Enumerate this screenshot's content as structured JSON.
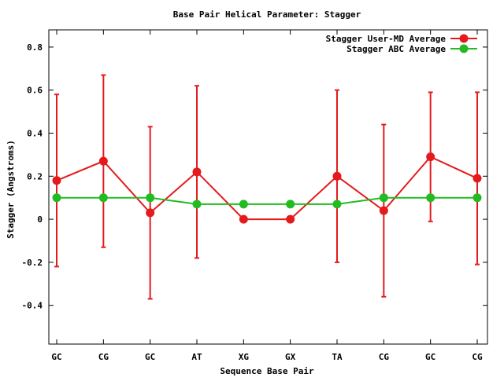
{
  "chart_data": {
    "type": "line",
    "title": "Base Pair Helical Parameter: Stagger",
    "xlabel": "Sequence Base Pair",
    "ylabel": "Stagger (Angstroms)",
    "categories": [
      "GC",
      "CG",
      "GC",
      "AT",
      "XG",
      "GX",
      "TA",
      "CG",
      "GC",
      "CG"
    ],
    "ylim": [
      -0.58,
      0.88
    ],
    "yticks": [
      -0.4,
      -0.2,
      0,
      0.2,
      0.4,
      0.6,
      0.8
    ],
    "ytick_labels": [
      "-0.4",
      "-0.2",
      "0",
      "0.2",
      "0.4",
      "0.6",
      "0.8"
    ],
    "grid": false,
    "legend_position": "top-right",
    "series": [
      {
        "name": "Stagger User-MD Average",
        "color": "#e41a1c",
        "values": [
          0.18,
          0.27,
          0.03,
          0.22,
          0.0,
          0.0,
          0.2,
          0.04,
          0.29,
          0.19
        ],
        "error_low": [
          -0.22,
          -0.13,
          -0.37,
          -0.18,
          0.0,
          0.0,
          -0.2,
          -0.36,
          -0.01,
          -0.21
        ],
        "error_high": [
          0.58,
          0.67,
          0.43,
          0.62,
          0.0,
          0.0,
          0.6,
          0.44,
          0.59,
          0.59
        ]
      },
      {
        "name": "Stagger ABC Average",
        "color": "#22bb22",
        "values": [
          0.1,
          0.1,
          0.1,
          0.07,
          0.07,
          0.07,
          0.07,
          0.1,
          0.1,
          0.1
        ]
      }
    ]
  }
}
